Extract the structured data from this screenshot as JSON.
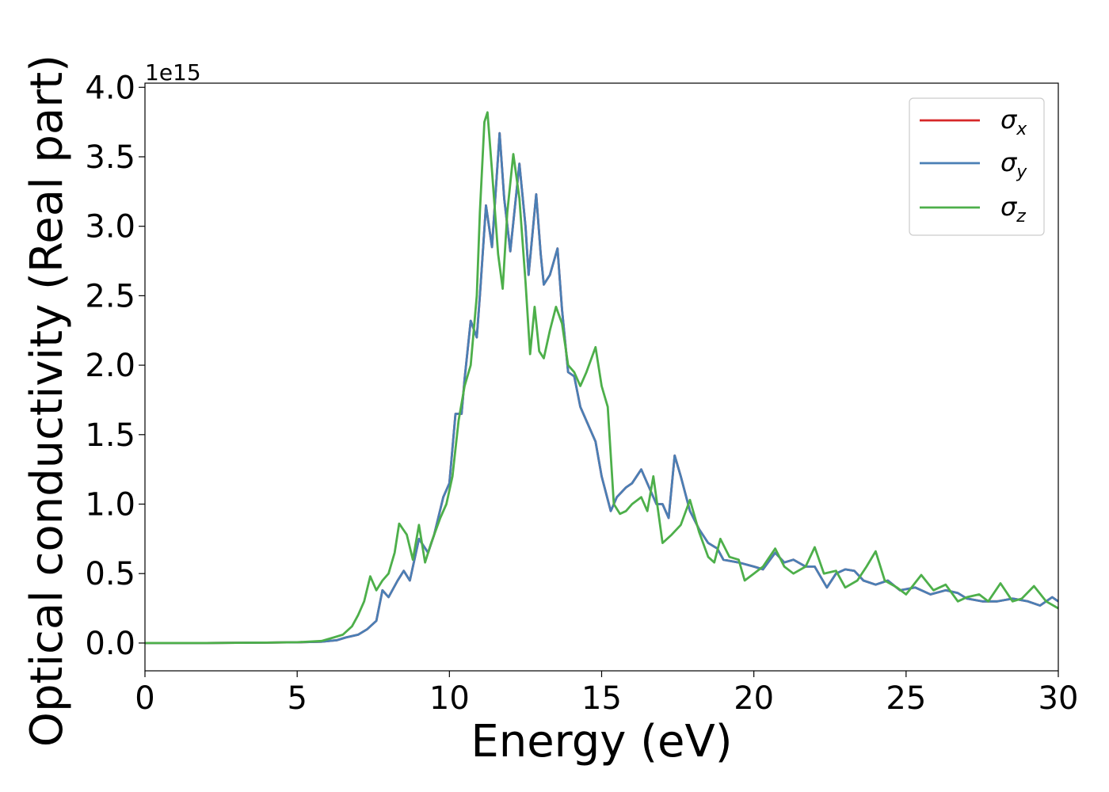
{
  "chart_data": {
    "type": "line",
    "title": "",
    "xlabel": "Energy (eV)",
    "ylabel": "Optical conductivity (Real part)",
    "y_offset_label": "1e15",
    "xlim": [
      0,
      30
    ],
    "ylim": [
      -0.2,
      4.03
    ],
    "x_ticks": [
      0,
      5,
      10,
      15,
      20,
      25,
      30
    ],
    "x_tick_labels": [
      "0",
      "5",
      "10",
      "15",
      "20",
      "25",
      "30"
    ],
    "y_ticks": [
      0.0,
      0.5,
      1.0,
      1.5,
      2.0,
      2.5,
      3.0,
      3.5,
      4.0
    ],
    "y_tick_labels": [
      "0.0",
      "0.5",
      "1.0",
      "1.5",
      "2.0",
      "2.5",
      "3.0",
      "3.5",
      "4.0"
    ],
    "grid": false,
    "legend_position": "top-right",
    "series": [
      {
        "name": "σx",
        "symbol": "σ",
        "subscript": "x",
        "color": "#d62728",
        "points": [
          [
            0,
            0
          ],
          [
            2,
            0
          ],
          [
            4,
            0.003
          ],
          [
            5,
            0.005
          ],
          [
            5.8,
            0.01
          ],
          [
            6.3,
            0.02
          ],
          [
            6.6,
            0.04
          ],
          [
            7,
            0.06
          ],
          [
            7.3,
            0.1
          ],
          [
            7.6,
            0.16
          ],
          [
            7.8,
            0.38
          ],
          [
            8.0,
            0.33
          ],
          [
            8.3,
            0.45
          ],
          [
            8.5,
            0.52
          ],
          [
            8.7,
            0.45
          ],
          [
            9.0,
            0.75
          ],
          [
            9.3,
            0.65
          ],
          [
            9.5,
            0.78
          ],
          [
            9.8,
            1.05
          ],
          [
            10.0,
            1.15
          ],
          [
            10.2,
            1.65
          ],
          [
            10.4,
            1.65
          ],
          [
            10.5,
            1.9
          ],
          [
            10.7,
            2.32
          ],
          [
            10.9,
            2.2
          ],
          [
            11.0,
            2.5
          ],
          [
            11.2,
            3.15
          ],
          [
            11.4,
            2.85
          ],
          [
            11.65,
            3.67
          ],
          [
            11.8,
            3.2
          ],
          [
            12.0,
            2.82
          ],
          [
            12.3,
            3.45
          ],
          [
            12.5,
            3.0
          ],
          [
            12.6,
            2.65
          ],
          [
            12.85,
            3.23
          ],
          [
            13.0,
            2.8
          ],
          [
            13.1,
            2.58
          ],
          [
            13.3,
            2.65
          ],
          [
            13.55,
            2.84
          ],
          [
            13.7,
            2.4
          ],
          [
            13.9,
            1.95
          ],
          [
            14.1,
            1.92
          ],
          [
            14.3,
            1.7
          ],
          [
            14.5,
            1.6
          ],
          [
            14.8,
            1.45
          ],
          [
            15.0,
            1.2
          ],
          [
            15.3,
            0.95
          ],
          [
            15.5,
            1.05
          ],
          [
            15.8,
            1.12
          ],
          [
            16.0,
            1.15
          ],
          [
            16.3,
            1.25
          ],
          [
            16.6,
            1.1
          ],
          [
            16.8,
            1.0
          ],
          [
            17.0,
            1.0
          ],
          [
            17.2,
            0.9
          ],
          [
            17.4,
            1.35
          ],
          [
            17.6,
            1.2
          ],
          [
            17.9,
            0.95
          ],
          [
            18.2,
            0.82
          ],
          [
            18.5,
            0.72
          ],
          [
            18.8,
            0.68
          ],
          [
            19.0,
            0.6
          ],
          [
            19.5,
            0.58
          ],
          [
            20.0,
            0.55
          ],
          [
            20.3,
            0.53
          ],
          [
            20.7,
            0.65
          ],
          [
            21.0,
            0.58
          ],
          [
            21.3,
            0.6
          ],
          [
            21.7,
            0.55
          ],
          [
            22.0,
            0.55
          ],
          [
            22.4,
            0.4
          ],
          [
            22.7,
            0.5
          ],
          [
            23.0,
            0.53
          ],
          [
            23.3,
            0.52
          ],
          [
            23.6,
            0.45
          ],
          [
            24.0,
            0.42
          ],
          [
            24.4,
            0.45
          ],
          [
            24.8,
            0.38
          ],
          [
            25.3,
            0.4
          ],
          [
            25.8,
            0.35
          ],
          [
            26.3,
            0.38
          ],
          [
            26.7,
            0.36
          ],
          [
            27.0,
            0.32
          ],
          [
            27.5,
            0.3
          ],
          [
            28.0,
            0.3
          ],
          [
            28.5,
            0.32
          ],
          [
            29.0,
            0.3
          ],
          [
            29.4,
            0.27
          ],
          [
            29.8,
            0.33
          ],
          [
            30.0,
            0.3
          ]
        ]
      },
      {
        "name": "σy",
        "symbol": "σ",
        "subscript": "y",
        "color": "#4a7fb5",
        "points": [
          [
            0,
            0
          ],
          [
            2,
            0
          ],
          [
            4,
            0.003
          ],
          [
            5,
            0.005
          ],
          [
            5.8,
            0.01
          ],
          [
            6.3,
            0.02
          ],
          [
            6.6,
            0.04
          ],
          [
            7,
            0.06
          ],
          [
            7.3,
            0.1
          ],
          [
            7.6,
            0.16
          ],
          [
            7.8,
            0.38
          ],
          [
            8.0,
            0.33
          ],
          [
            8.3,
            0.45
          ],
          [
            8.5,
            0.52
          ],
          [
            8.7,
            0.45
          ],
          [
            9.0,
            0.75
          ],
          [
            9.3,
            0.65
          ],
          [
            9.5,
            0.78
          ],
          [
            9.8,
            1.05
          ],
          [
            10.0,
            1.15
          ],
          [
            10.2,
            1.65
          ],
          [
            10.4,
            1.65
          ],
          [
            10.5,
            1.9
          ],
          [
            10.7,
            2.32
          ],
          [
            10.9,
            2.2
          ],
          [
            11.0,
            2.5
          ],
          [
            11.2,
            3.15
          ],
          [
            11.4,
            2.85
          ],
          [
            11.65,
            3.67
          ],
          [
            11.8,
            3.2
          ],
          [
            12.0,
            2.82
          ],
          [
            12.3,
            3.45
          ],
          [
            12.5,
            3.0
          ],
          [
            12.6,
            2.65
          ],
          [
            12.85,
            3.23
          ],
          [
            13.0,
            2.8
          ],
          [
            13.1,
            2.58
          ],
          [
            13.3,
            2.65
          ],
          [
            13.55,
            2.84
          ],
          [
            13.7,
            2.4
          ],
          [
            13.9,
            1.95
          ],
          [
            14.1,
            1.92
          ],
          [
            14.3,
            1.7
          ],
          [
            14.5,
            1.6
          ],
          [
            14.8,
            1.45
          ],
          [
            15.0,
            1.2
          ],
          [
            15.3,
            0.95
          ],
          [
            15.5,
            1.05
          ],
          [
            15.8,
            1.12
          ],
          [
            16.0,
            1.15
          ],
          [
            16.3,
            1.25
          ],
          [
            16.6,
            1.1
          ],
          [
            16.8,
            1.0
          ],
          [
            17.0,
            1.0
          ],
          [
            17.2,
            0.9
          ],
          [
            17.4,
            1.35
          ],
          [
            17.6,
            1.2
          ],
          [
            17.9,
            0.95
          ],
          [
            18.2,
            0.82
          ],
          [
            18.5,
            0.72
          ],
          [
            18.8,
            0.68
          ],
          [
            19.0,
            0.6
          ],
          [
            19.5,
            0.58
          ],
          [
            20.0,
            0.55
          ],
          [
            20.3,
            0.53
          ],
          [
            20.7,
            0.65
          ],
          [
            21.0,
            0.58
          ],
          [
            21.3,
            0.6
          ],
          [
            21.7,
            0.55
          ],
          [
            22.0,
            0.55
          ],
          [
            22.4,
            0.4
          ],
          [
            22.7,
            0.5
          ],
          [
            23.0,
            0.53
          ],
          [
            23.3,
            0.52
          ],
          [
            23.6,
            0.45
          ],
          [
            24.0,
            0.42
          ],
          [
            24.4,
            0.45
          ],
          [
            24.8,
            0.38
          ],
          [
            25.3,
            0.4
          ],
          [
            25.8,
            0.35
          ],
          [
            26.3,
            0.38
          ],
          [
            26.7,
            0.36
          ],
          [
            27.0,
            0.32
          ],
          [
            27.5,
            0.3
          ],
          [
            28.0,
            0.3
          ],
          [
            28.5,
            0.32
          ],
          [
            29.0,
            0.3
          ],
          [
            29.4,
            0.27
          ],
          [
            29.8,
            0.33
          ],
          [
            30.0,
            0.3
          ]
        ]
      },
      {
        "name": "σz",
        "symbol": "σ",
        "subscript": "z",
        "color": "#4daf4a",
        "points": [
          [
            0,
            0
          ],
          [
            2,
            0
          ],
          [
            4,
            0.003
          ],
          [
            5,
            0.006
          ],
          [
            5.8,
            0.015
          ],
          [
            6.2,
            0.04
          ],
          [
            6.5,
            0.06
          ],
          [
            6.8,
            0.12
          ],
          [
            7.0,
            0.2
          ],
          [
            7.2,
            0.3
          ],
          [
            7.4,
            0.48
          ],
          [
            7.6,
            0.38
          ],
          [
            7.8,
            0.45
          ],
          [
            8.0,
            0.5
          ],
          [
            8.2,
            0.65
          ],
          [
            8.35,
            0.86
          ],
          [
            8.6,
            0.78
          ],
          [
            8.8,
            0.6
          ],
          [
            9.0,
            0.85
          ],
          [
            9.2,
            0.58
          ],
          [
            9.4,
            0.72
          ],
          [
            9.7,
            0.9
          ],
          [
            9.9,
            1.0
          ],
          [
            10.1,
            1.2
          ],
          [
            10.3,
            1.6
          ],
          [
            10.5,
            1.85
          ],
          [
            10.7,
            2.0
          ],
          [
            10.9,
            2.5
          ],
          [
            11.0,
            3.1
          ],
          [
            11.15,
            3.75
          ],
          [
            11.25,
            3.82
          ],
          [
            11.4,
            3.4
          ],
          [
            11.6,
            2.8
          ],
          [
            11.75,
            2.55
          ],
          [
            11.9,
            3.1
          ],
          [
            12.1,
            3.52
          ],
          [
            12.3,
            3.2
          ],
          [
            12.5,
            2.6
          ],
          [
            12.65,
            2.08
          ],
          [
            12.8,
            2.42
          ],
          [
            12.95,
            2.1
          ],
          [
            13.1,
            2.05
          ],
          [
            13.3,
            2.25
          ],
          [
            13.5,
            2.42
          ],
          [
            13.7,
            2.3
          ],
          [
            13.9,
            2.0
          ],
          [
            14.1,
            1.95
          ],
          [
            14.3,
            1.85
          ],
          [
            14.5,
            1.95
          ],
          [
            14.8,
            2.13
          ],
          [
            15.0,
            1.85
          ],
          [
            15.2,
            1.7
          ],
          [
            15.4,
            1.0
          ],
          [
            15.6,
            0.93
          ],
          [
            15.8,
            0.95
          ],
          [
            16.0,
            1.0
          ],
          [
            16.3,
            1.05
          ],
          [
            16.5,
            0.95
          ],
          [
            16.7,
            1.2
          ],
          [
            17.0,
            0.72
          ],
          [
            17.3,
            0.78
          ],
          [
            17.6,
            0.85
          ],
          [
            17.9,
            1.03
          ],
          [
            18.2,
            0.8
          ],
          [
            18.5,
            0.62
          ],
          [
            18.7,
            0.58
          ],
          [
            18.9,
            0.75
          ],
          [
            19.2,
            0.62
          ],
          [
            19.5,
            0.6
          ],
          [
            19.7,
            0.45
          ],
          [
            20.0,
            0.5
          ],
          [
            20.3,
            0.55
          ],
          [
            20.7,
            0.68
          ],
          [
            21.0,
            0.55
          ],
          [
            21.3,
            0.5
          ],
          [
            21.7,
            0.55
          ],
          [
            22.0,
            0.69
          ],
          [
            22.3,
            0.5
          ],
          [
            22.7,
            0.52
          ],
          [
            23.0,
            0.4
          ],
          [
            23.4,
            0.45
          ],
          [
            23.7,
            0.55
          ],
          [
            24.0,
            0.66
          ],
          [
            24.3,
            0.45
          ],
          [
            24.7,
            0.4
          ],
          [
            25.0,
            0.35
          ],
          [
            25.5,
            0.49
          ],
          [
            25.9,
            0.38
          ],
          [
            26.3,
            0.42
          ],
          [
            26.7,
            0.3
          ],
          [
            27.0,
            0.33
          ],
          [
            27.4,
            0.35
          ],
          [
            27.7,
            0.3
          ],
          [
            28.1,
            0.43
          ],
          [
            28.5,
            0.3
          ],
          [
            28.8,
            0.32
          ],
          [
            29.2,
            0.41
          ],
          [
            29.6,
            0.3
          ],
          [
            30.0,
            0.25
          ]
        ]
      }
    ]
  }
}
